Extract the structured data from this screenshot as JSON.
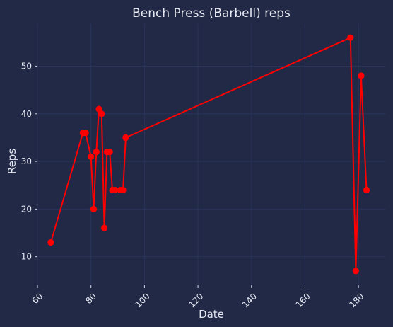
{
  "chart_data": {
    "type": "line",
    "title": "Bench Press (Barbell) reps",
    "xlabel": "Date",
    "ylabel": "Reps",
    "xlim": [
      60,
      190
    ],
    "ylim": [
      4,
      59
    ],
    "xticks": [
      60,
      80,
      100,
      120,
      140,
      160,
      180
    ],
    "yticks": [
      10,
      20,
      30,
      40,
      50
    ],
    "grid": true,
    "series": [
      {
        "color": "#ff0000",
        "marker": "circle",
        "points": [
          [
            65,
            13
          ],
          [
            77,
            36
          ],
          [
            78,
            36
          ],
          [
            80,
            31
          ],
          [
            81,
            20
          ],
          [
            82,
            32
          ],
          [
            83,
            41
          ],
          [
            84,
            40
          ],
          [
            85,
            16
          ],
          [
            86,
            32
          ],
          [
            87,
            32
          ],
          [
            88,
            24
          ],
          [
            89,
            24
          ],
          [
            91,
            24
          ],
          [
            92,
            24
          ],
          [
            93,
            35
          ],
          [
            177,
            56
          ],
          [
            179,
            7
          ],
          [
            181,
            48
          ],
          [
            183,
            24
          ]
        ]
      }
    ]
  },
  "colors": {
    "background": "#212946",
    "grid": "#2a3459",
    "text": "#e6e9f2",
    "line": "#ff0000"
  }
}
